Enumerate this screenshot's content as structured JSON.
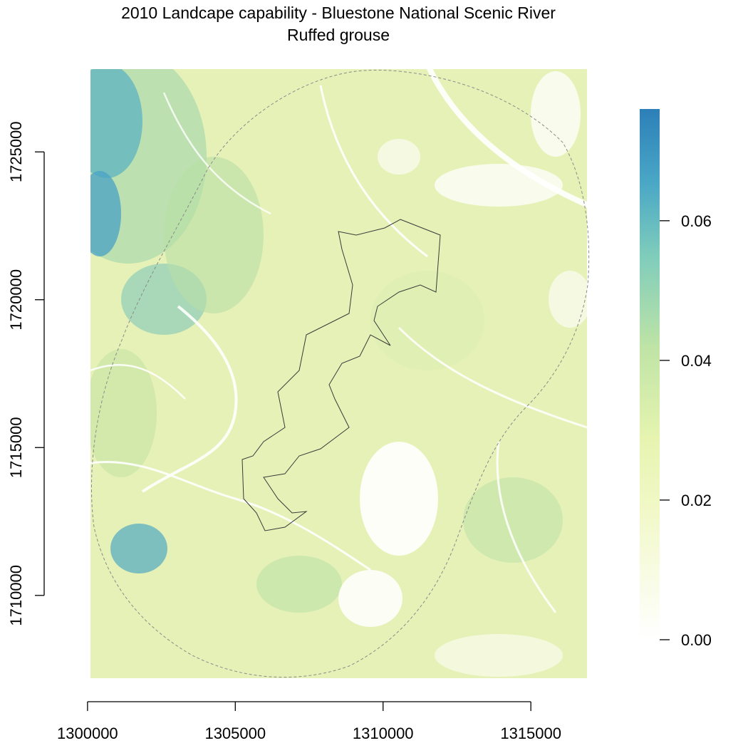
{
  "title": "2010 Landcape capability - Bluestone National Scenic River",
  "subtitle": "Ruffed grouse",
  "chart_data": {
    "type": "heatmap",
    "title": "2010 Landcape capability - Bluestone National Scenic River",
    "subtitle": "Ruffed grouse",
    "x_ticks": [
      "1300000",
      "1305000",
      "1310000",
      "1315000"
    ],
    "y_ticks": [
      "1710000",
      "1715000",
      "1720000",
      "1725000"
    ],
    "x_tick_values": [
      1300000,
      1305000,
      1310000,
      1315000
    ],
    "y_tick_values": [
      1710000,
      1715000,
      1720000,
      1725000
    ],
    "xlim": [
      1300100,
      1316900
    ],
    "ylim": [
      1707200,
      1727800
    ],
    "legend": {
      "placement": "right",
      "ticks": [
        "0.00",
        "0.02",
        "0.04",
        "0.06"
      ],
      "tick_values": [
        0.0,
        0.02,
        0.04,
        0.06
      ],
      "range": [
        0.0,
        0.076
      ],
      "colors": [
        "#ffffff",
        "#eef7b8",
        "#c9e8a3",
        "#7fcdbb",
        "#41a4c4",
        "#2c7fb8"
      ]
    },
    "outlines": [
      "park boundary (solid)",
      "buffer boundary (dashed)"
    ]
  }
}
